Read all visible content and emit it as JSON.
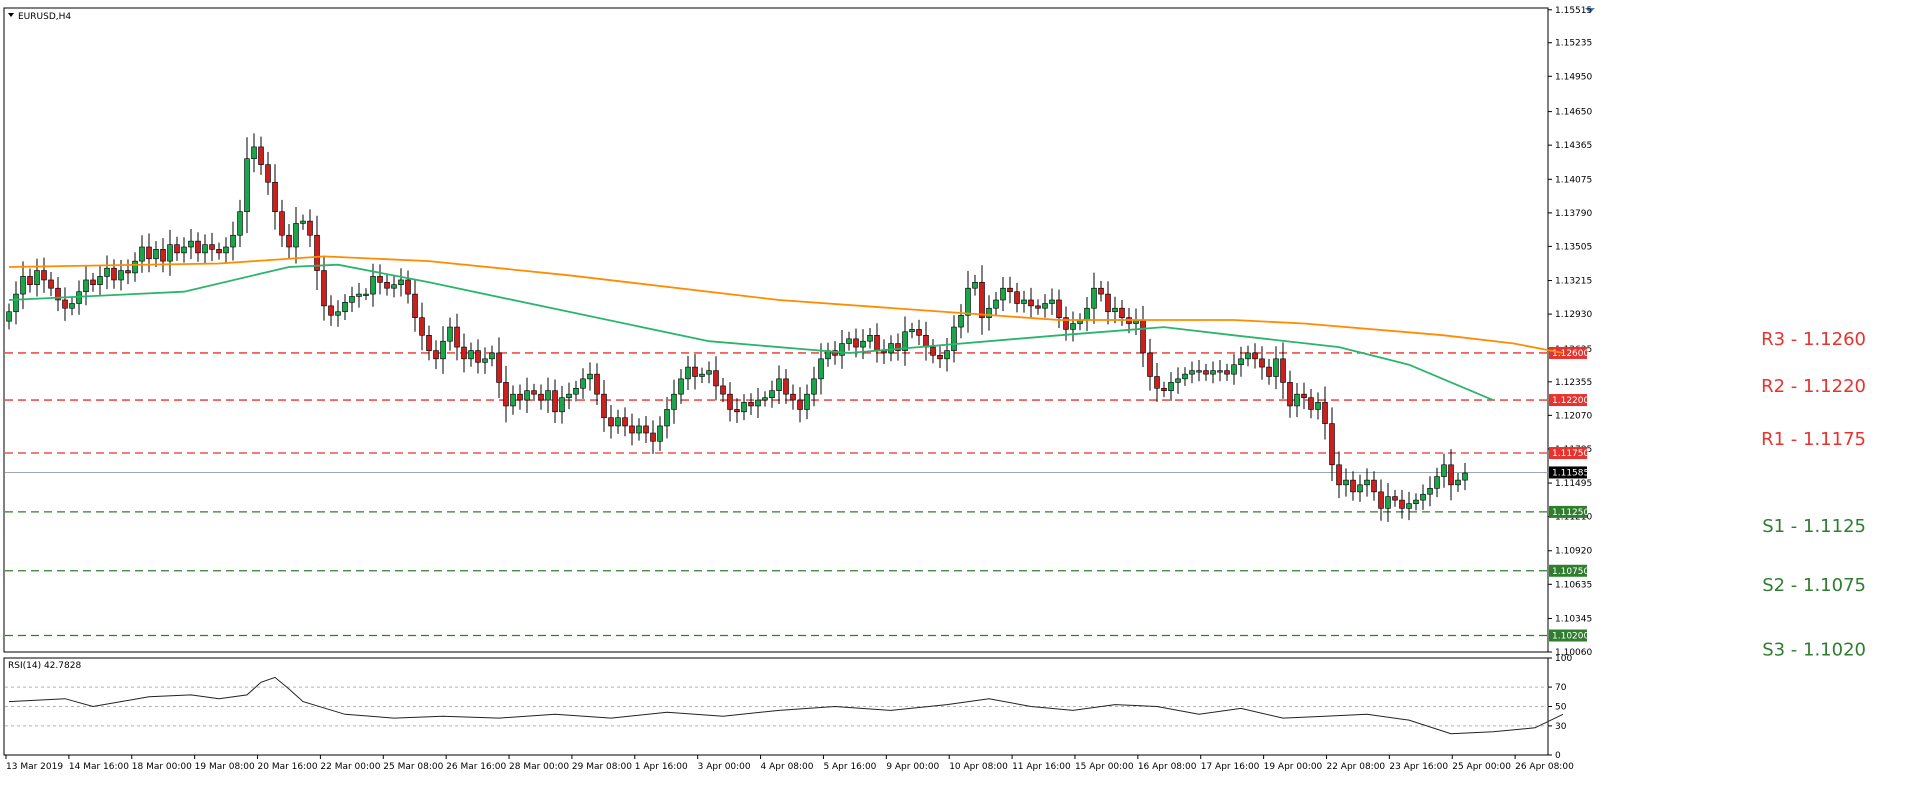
{
  "chart_data": {
    "type": "candlestick",
    "symbol_label": "EURUSD,H4",
    "x_tick_labels": [
      "13 Mar 2019",
      "14 Mar 16:00",
      "18 Mar 00:00",
      "19 Mar 08:00",
      "20 Mar 16:00",
      "22 Mar 00:00",
      "25 Mar 08:00",
      "26 Mar 16:00",
      "28 Mar 00:00",
      "29 Mar 08:00",
      "1 Apr 16:00",
      "3 Apr 00:00",
      "4 Apr 08:00",
      "5 Apr 16:00",
      "9 Apr 00:00",
      "10 Apr 08:00",
      "11 Apr 16:00",
      "15 Apr 00:00",
      "16 Apr 08:00",
      "17 Apr 16:00",
      "19 Apr 00:00",
      "22 Apr 08:00",
      "23 Apr 16:00",
      "25 Apr 00:00",
      "26 Apr 08:00"
    ],
    "ylim": [
      1.1006,
      1.1553
    ],
    "y_ticks": [
      "1.15515",
      "1.15235",
      "1.14950",
      "1.14650",
      "1.14365",
      "1.14075",
      "1.13790",
      "1.13505",
      "1.13215",
      "1.12930",
      "1.12635",
      "1.12355",
      "1.12070",
      "1.11785",
      "1.11495",
      "1.11210",
      "1.10920",
      "1.10635",
      "1.10345",
      "1.10060"
    ],
    "close": [
      1.1295,
      1.131,
      1.1325,
      1.1318,
      1.133,
      1.1322,
      1.1315,
      1.1305,
      1.1298,
      1.1302,
      1.1312,
      1.1322,
      1.1318,
      1.1325,
      1.1332,
      1.1322,
      1.133,
      1.1328,
      1.1338,
      1.135,
      1.134,
      1.1348,
      1.1338,
      1.1352,
      1.1345,
      1.135,
      1.1355,
      1.1345,
      1.1352,
      1.1348,
      1.1345,
      1.135,
      1.136,
      1.138,
      1.1425,
      1.1435,
      1.142,
      1.1405,
      1.138,
      1.136,
      1.135,
      1.137,
      1.1372,
      1.136,
      1.133,
      1.13,
      1.1292,
      1.1295,
      1.1303,
      1.1308,
      1.131,
      1.131,
      1.1325,
      1.132,
      1.1315,
      1.1318,
      1.1322,
      1.131,
      1.129,
      1.1275,
      1.1262,
      1.1255,
      1.127,
      1.1282,
      1.1265,
      1.1255,
      1.1262,
      1.1252,
      1.1255,
      1.126,
      1.1235,
      1.1215,
      1.1225,
      1.122,
      1.1228,
      1.1225,
      1.122,
      1.1228,
      1.121,
      1.1222,
      1.1225,
      1.123,
      1.1238,
      1.1242,
      1.1225,
      1.1205,
      1.1198,
      1.1205,
      1.1198,
      1.1192,
      1.1198,
      1.1192,
      1.1185,
      1.1198,
      1.1212,
      1.1225,
      1.1238,
      1.1248,
      1.124,
      1.1242,
      1.1245,
      1.1232,
      1.1225,
      1.1212,
      1.121,
      1.1218,
      1.1215,
      1.122,
      1.1222,
      1.1228,
      1.1238,
      1.1225,
      1.122,
      1.1212,
      1.1225,
      1.1238,
      1.1255,
      1.1262,
      1.1258,
      1.1268,
      1.1272,
      1.1265,
      1.127,
      1.1275,
      1.1262,
      1.126,
      1.1268,
      1.1262,
      1.1278,
      1.128,
      1.1275,
      1.1265,
      1.1258,
      1.1255,
      1.1262,
      1.1282,
      1.1292,
      1.1315,
      1.132,
      1.129,
      1.1298,
      1.1305,
      1.1315,
      1.1312,
      1.1302,
      1.1305,
      1.13,
      1.1298,
      1.1302,
      1.1305,
      1.129,
      1.128,
      1.1285,
      1.1288,
      1.1298,
      1.1315,
      1.131,
      1.1295,
      1.1298,
      1.129,
      1.1285,
      1.1288,
      1.126,
      1.124,
      1.123,
      1.1228,
      1.1235,
      1.1238,
      1.1242,
      1.1245,
      1.1245,
      1.1242,
      1.1245,
      1.1245,
      1.1242,
      1.125,
      1.1255,
      1.126,
      1.1255,
      1.1248,
      1.124,
      1.1255,
      1.1235,
      1.1215,
      1.1225,
      1.1222,
      1.1212,
      1.1218,
      1.12,
      1.1165,
      1.1148,
      1.1152,
      1.1142,
      1.1148,
      1.1152,
      1.1142,
      1.1128,
      1.1138,
      1.1135,
      1.1128,
      1.1132,
      1.1135,
      1.114,
      1.1145,
      1.1155,
      1.1165,
      1.1148,
      1.1152,
      1.1158
    ],
    "ma_orange": {
      "start": 1.1333,
      "points": [
        [
          0,
          1.1333
        ],
        [
          30,
          1.1336
        ],
        [
          45,
          1.1342
        ],
        [
          60,
          1.1338
        ],
        [
          80,
          1.1326
        ],
        [
          110,
          1.1305
        ],
        [
          150,
          1.1288
        ],
        [
          175,
          1.1288
        ],
        [
          185,
          1.1285
        ],
        [
          205,
          1.1275
        ],
        [
          215,
          1.1268
        ],
        [
          222,
          1.126
        ]
      ]
    },
    "ma_green": {
      "start": 1.1305,
      "points": [
        [
          0,
          1.1305
        ],
        [
          25,
          1.1312
        ],
        [
          40,
          1.1333
        ],
        [
          47,
          1.1335
        ],
        [
          60,
          1.132
        ],
        [
          80,
          1.1295
        ],
        [
          100,
          1.127
        ],
        [
          120,
          1.126
        ],
        [
          150,
          1.1275
        ],
        [
          165,
          1.1282
        ],
        [
          175,
          1.1275
        ],
        [
          190,
          1.1265
        ],
        [
          200,
          1.125
        ],
        [
          212,
          1.122
        ]
      ]
    },
    "levels": [
      {
        "label": "R3 - 1.1260",
        "tag": "1.12600",
        "value": 1.126,
        "kind": "resistance"
      },
      {
        "label": "R2 - 1.1220",
        "tag": "1.12200",
        "value": 1.122,
        "kind": "resistance"
      },
      {
        "label": "R1 - 1.1175",
        "tag": "1.11750",
        "value": 1.1175,
        "kind": "resistance"
      },
      {
        "label": "S1 - 1.1125",
        "tag": "1.11250",
        "value": 1.1125,
        "kind": "support"
      },
      {
        "label": "S2 - 1.1075",
        "tag": "1.10750",
        "value": 1.1075,
        "kind": "support"
      },
      {
        "label": "S3 - 1.1020",
        "tag": "1.10200",
        "value": 1.102,
        "kind": "support"
      }
    ],
    "current_price": {
      "value": 1.11585,
      "tag": "1.11585"
    },
    "rsi": {
      "label": "RSI(14) 42.7828",
      "ylim": [
        0,
        100
      ],
      "y_ticks": [
        "100",
        "70",
        "50",
        "30",
        "0"
      ],
      "levels": [
        70,
        50,
        30
      ],
      "points": [
        [
          0,
          55
        ],
        [
          8,
          58
        ],
        [
          12,
          50
        ],
        [
          16,
          55
        ],
        [
          20,
          60
        ],
        [
          26,
          62
        ],
        [
          30,
          58
        ],
        [
          34,
          62
        ],
        [
          36,
          75
        ],
        [
          38,
          80
        ],
        [
          40,
          68
        ],
        [
          42,
          55
        ],
        [
          48,
          42
        ],
        [
          55,
          38
        ],
        [
          62,
          40
        ],
        [
          70,
          38
        ],
        [
          78,
          42
        ],
        [
          86,
          38
        ],
        [
          94,
          44
        ],
        [
          102,
          40
        ],
        [
          110,
          46
        ],
        [
          118,
          50
        ],
        [
          126,
          46
        ],
        [
          134,
          52
        ],
        [
          140,
          58
        ],
        [
          146,
          50
        ],
        [
          152,
          46
        ],
        [
          158,
          52
        ],
        [
          164,
          50
        ],
        [
          170,
          42
        ],
        [
          176,
          48
        ],
        [
          182,
          38
        ],
        [
          188,
          40
        ],
        [
          194,
          42
        ],
        [
          200,
          36
        ],
        [
          206,
          22
        ],
        [
          212,
          24
        ],
        [
          218,
          28
        ],
        [
          222,
          42
        ]
      ]
    },
    "colors": {
      "bull": "#1aa54b",
      "bear": "#cc1f1f",
      "ma_orange": "#ff8c00",
      "ma_green": "#2ab56c",
      "resistance": "#e8322e",
      "support": "#2f7d2f"
    }
  }
}
